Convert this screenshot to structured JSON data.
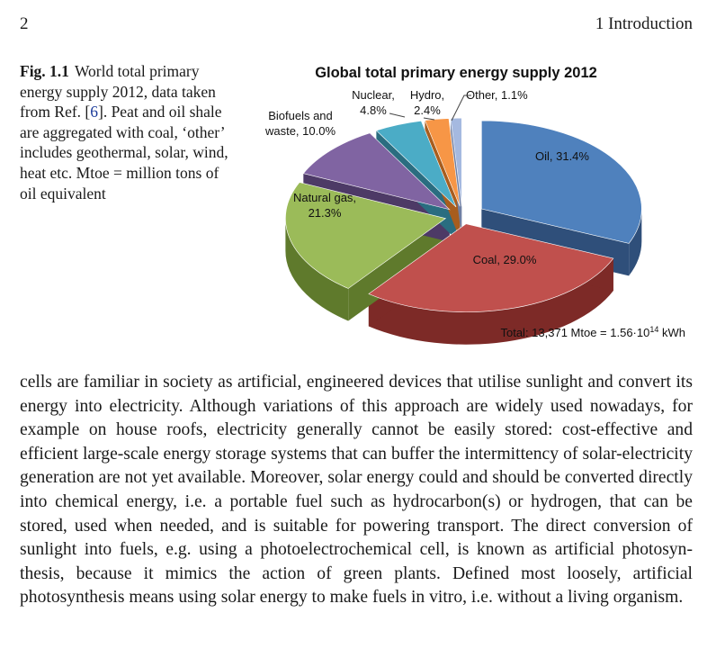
{
  "header": {
    "page_number": "2",
    "running_head": "1   Introduction"
  },
  "caption": {
    "label": "Fig. 1.1",
    "text_before_ref": "World total primary energy supply 2012, data taken from Ref. [",
    "ref": "6",
    "text_after_ref": "]. Peat and oil shale are aggregated with coal, ‘other’ includes geothermal, solar, wind, heat etc. Mtoe = million tons of oil equivalent",
    "ref_color": "#1a3a9a"
  },
  "chart_data": {
    "type": "pie",
    "title": "Global total primary energy supply 2012",
    "slices": [
      {
        "label": "Oil",
        "value": 31.4,
        "display": "Oil, 31.4%",
        "color": "#4f81bd",
        "dark": "#2f4f7a"
      },
      {
        "label": "Coal",
        "value": 29.0,
        "display": "Coal, 29.0%",
        "color": "#c0504d",
        "dark": "#7d2a27"
      },
      {
        "label": "Natural gas",
        "value": 21.3,
        "display": "Natural gas, 21.3%",
        "color": "#9bbb59",
        "dark": "#5f7a2c"
      },
      {
        "label": "Biofuels and waste",
        "value": 10.0,
        "display": "Biofuels and waste, 10.0%",
        "color": "#8064a2",
        "dark": "#4d3a66"
      },
      {
        "label": "Nuclear",
        "value": 4.8,
        "display": "Nuclear, 4.8%",
        "color": "#4bacc6",
        "dark": "#2a6d80"
      },
      {
        "label": "Hydro",
        "value": 2.4,
        "display": "Hydro, 2.4%",
        "color": "#f79646",
        "dark": "#a85d1e"
      },
      {
        "label": "Other",
        "value": 1.1,
        "display": "Other, 1.1%",
        "color": "#a5b9e0",
        "dark": "#6f7fa3"
      }
    ],
    "annotation": "Total: 13,371 Mtoe = 1.56·10",
    "annotation_exp": "14",
    "annotation_unit": " kWh"
  },
  "body": {
    "paragraph": "cells are familiar in society as artificial, engineered devices that utilise sunlight and convert its energy into electricity. Although variations of this approach are widely used nowadays, for example on house roofs, electricity generally cannot be easily stored: cost-effective and efficient large-scale energy storage systems that can buffer the intermittency of solar-electricity generation are not yet available. Moreover, solar energy could and should be converted directly into chemical energy, i.e. a portable fuel such as hydrocarbon(s) or hydrogen, that can be stored, used when needed, and is suitable for powering transport. The direct conversion of sunlight into fuels, e.g. using a photoelectrochemical cell, is known as artificial photosyn-thesis, because it mimics the action of green plants. Defined most loosely, artificial photosynthesis means using solar energy to make fuels in vitro, i.e. without a living organism."
  }
}
